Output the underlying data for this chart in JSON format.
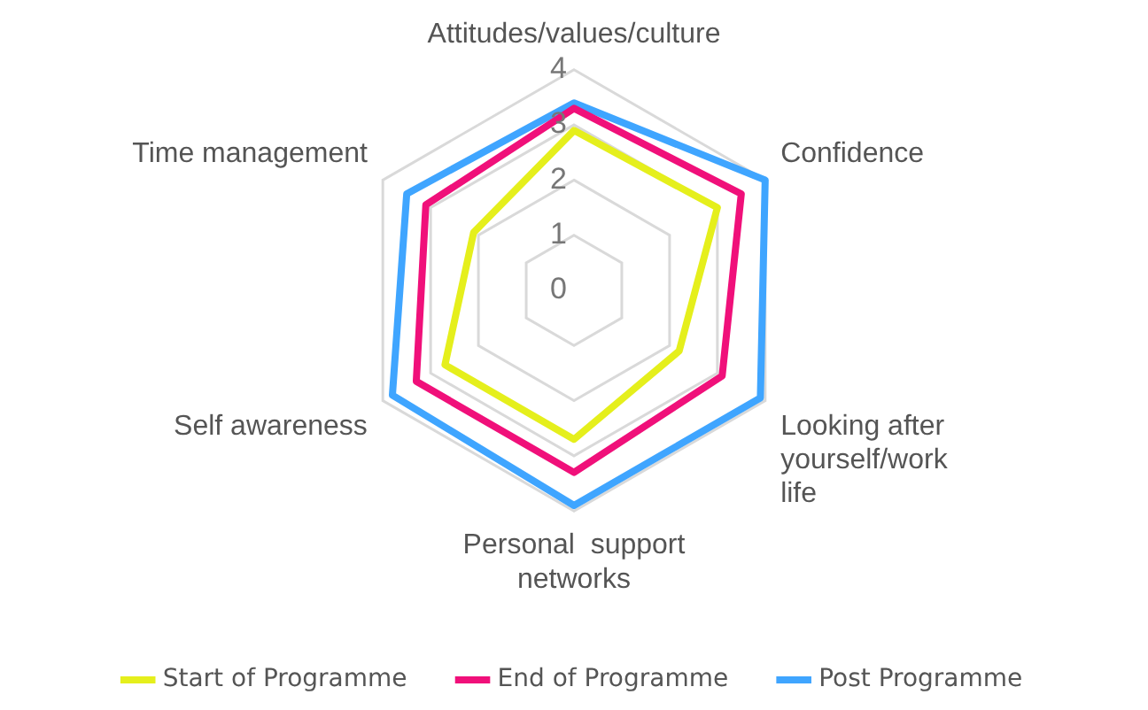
{
  "chart_data": {
    "type": "radar",
    "categories": [
      "Attitudes/values/culture",
      "Confidence",
      "Looking after yourself/work life",
      "Personal  support networks",
      "Self awareness",
      "Time management"
    ],
    "series": [
      {
        "name": "Start of Programme",
        "color": "#e5ef1c",
        "values": [
          2.9,
          3.0,
          2.2,
          2.7,
          2.7,
          2.1
        ]
      },
      {
        "name": "End of Programme",
        "color": "#f0107a",
        "values": [
          3.3,
          3.5,
          3.1,
          3.3,
          3.3,
          3.1
        ]
      },
      {
        "name": "Post Programme",
        "color": "#3fa5ff",
        "values": [
          3.4,
          4.0,
          3.9,
          3.9,
          3.8,
          3.5
        ]
      }
    ],
    "ylim": [
      0,
      4
    ],
    "yticks": [
      0,
      1,
      2,
      3,
      4
    ],
    "grid": true,
    "legend": "bottom",
    "marker": "none"
  }
}
